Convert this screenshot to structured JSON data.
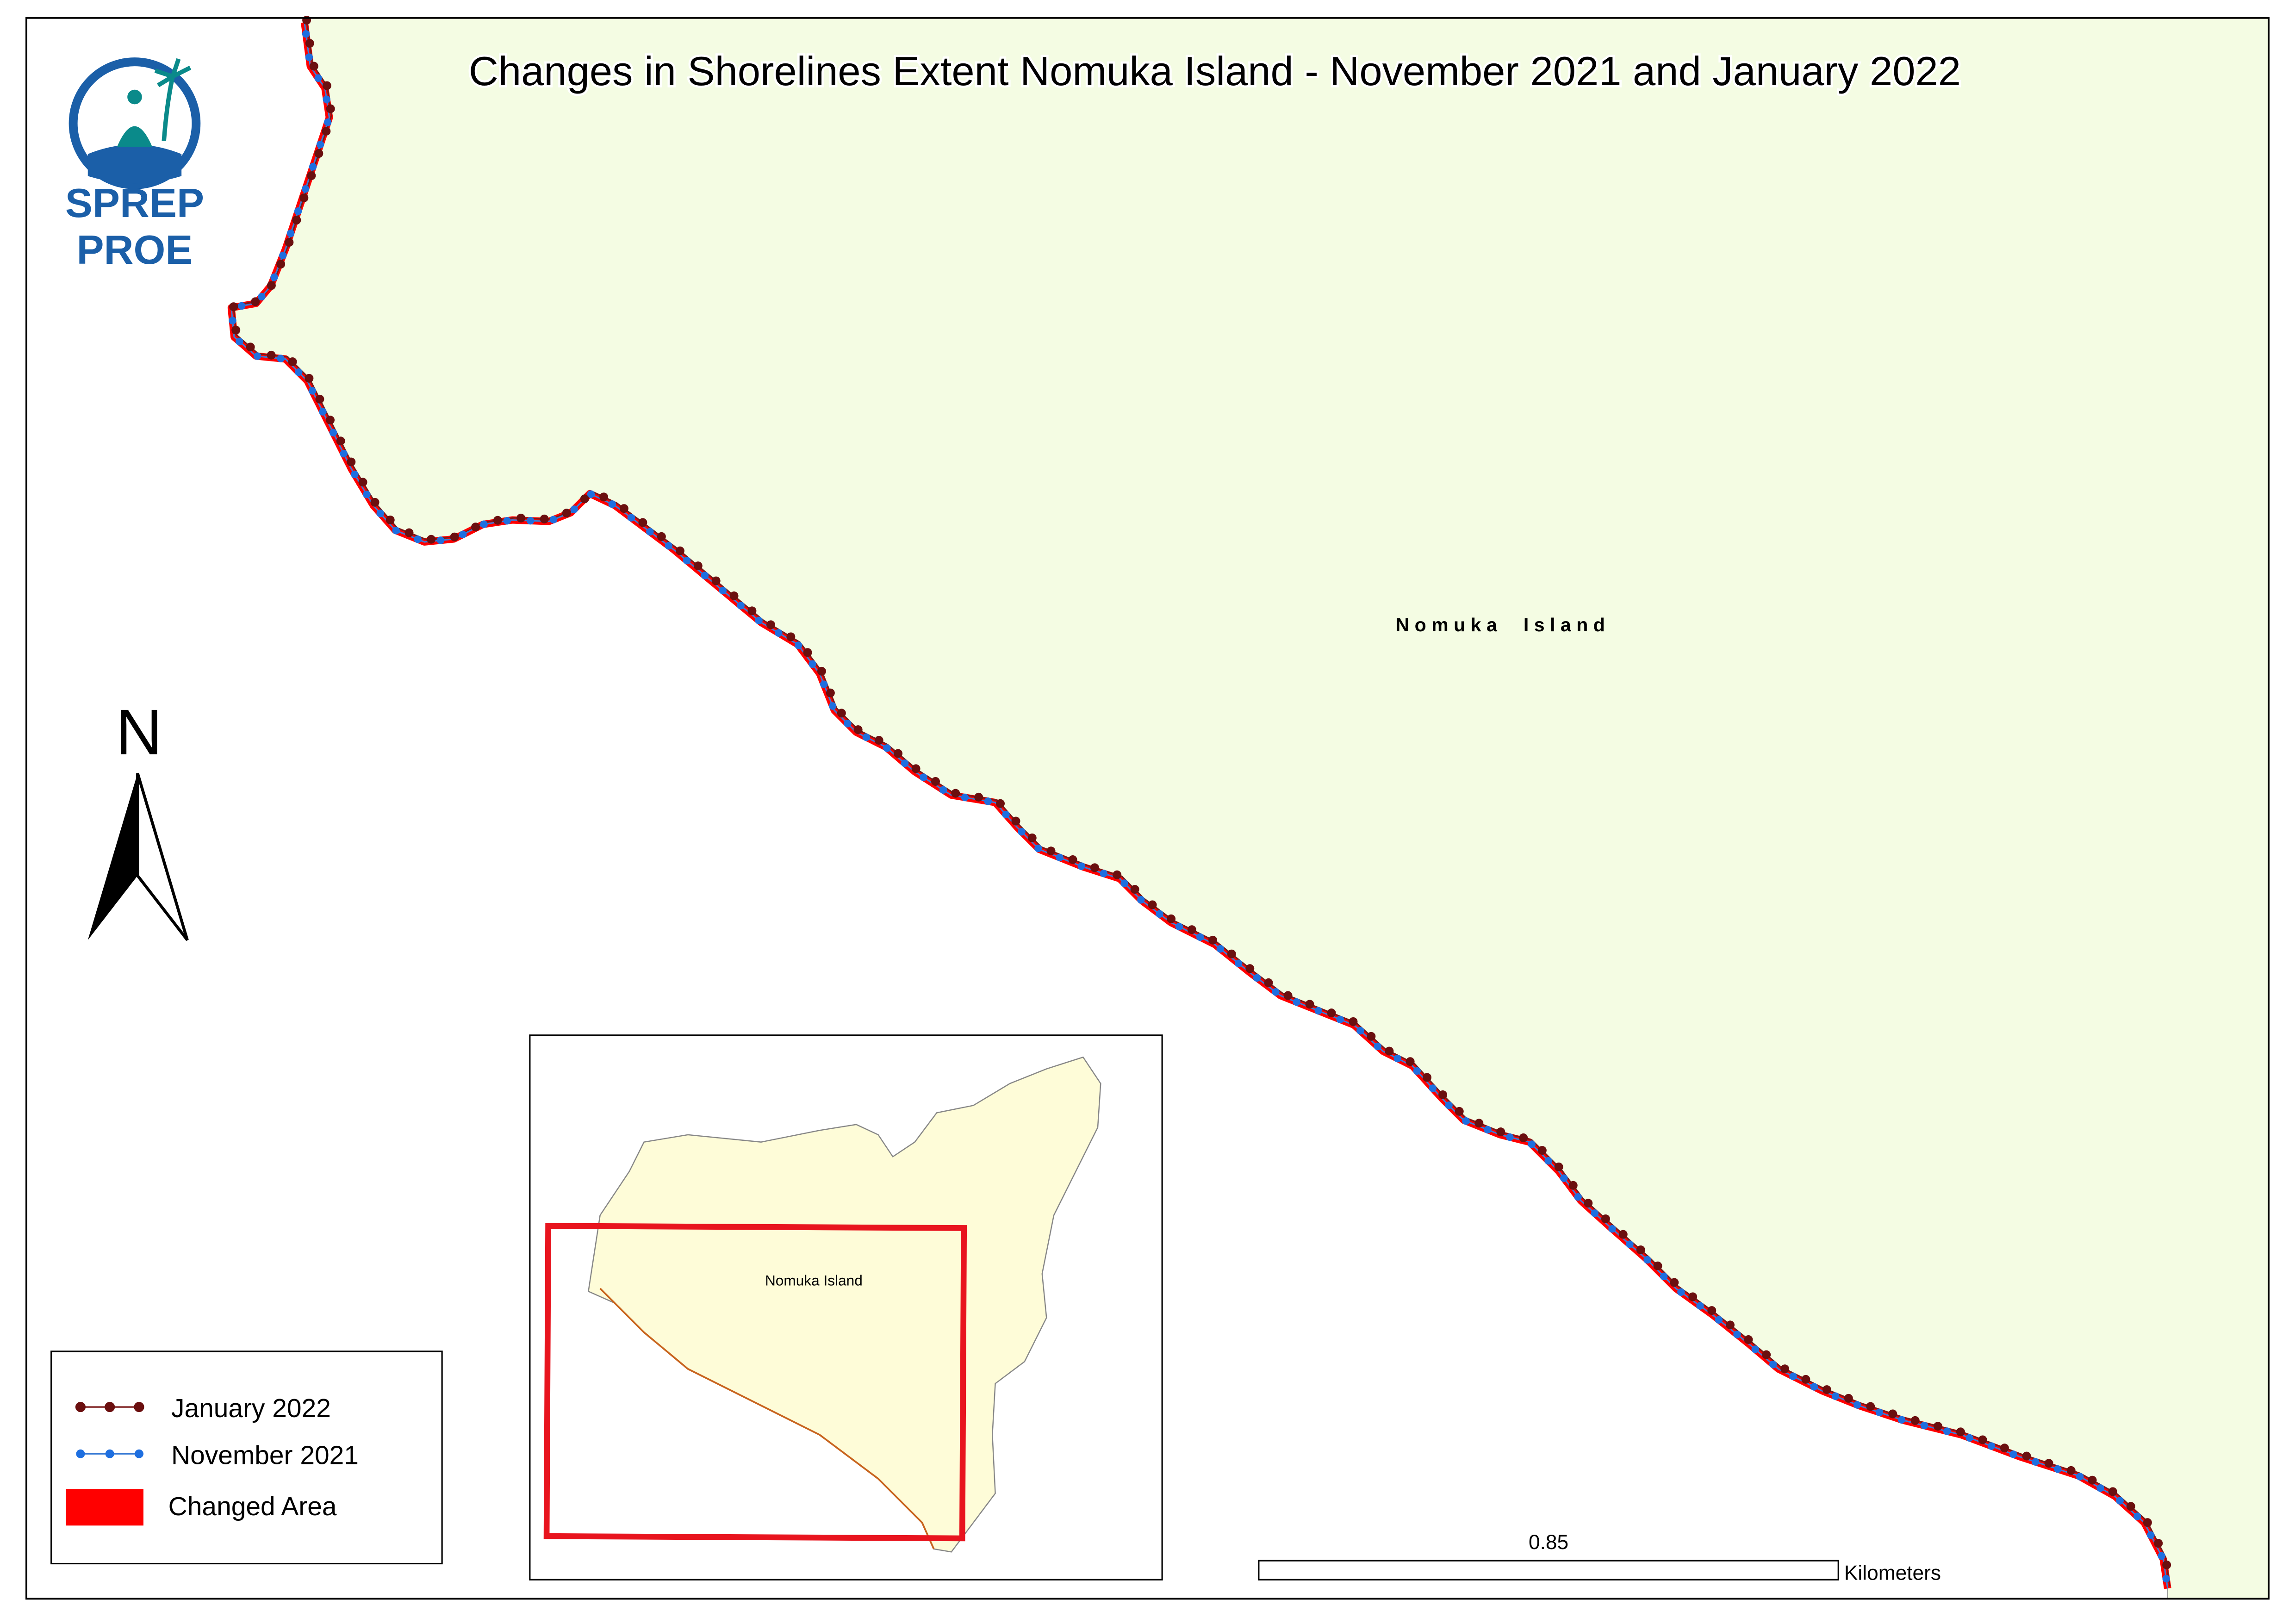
{
  "header": {
    "title": "Changes in Shorelines  Extent   Nomuka Island  - November 2021 and January  2022"
  },
  "logo": {
    "line1": "SPREP",
    "line2": "PROE"
  },
  "north_arrow": {
    "label": "N"
  },
  "map": {
    "label": "N o m u k a     I s l a n d"
  },
  "inset": {
    "label": "Nomuka Island"
  },
  "legend": {
    "items": [
      "January 2022",
      "November 2021",
      "Changed Area"
    ]
  },
  "scale_bar": {
    "value": 0.85,
    "unit": "Kilometers"
  }
}
